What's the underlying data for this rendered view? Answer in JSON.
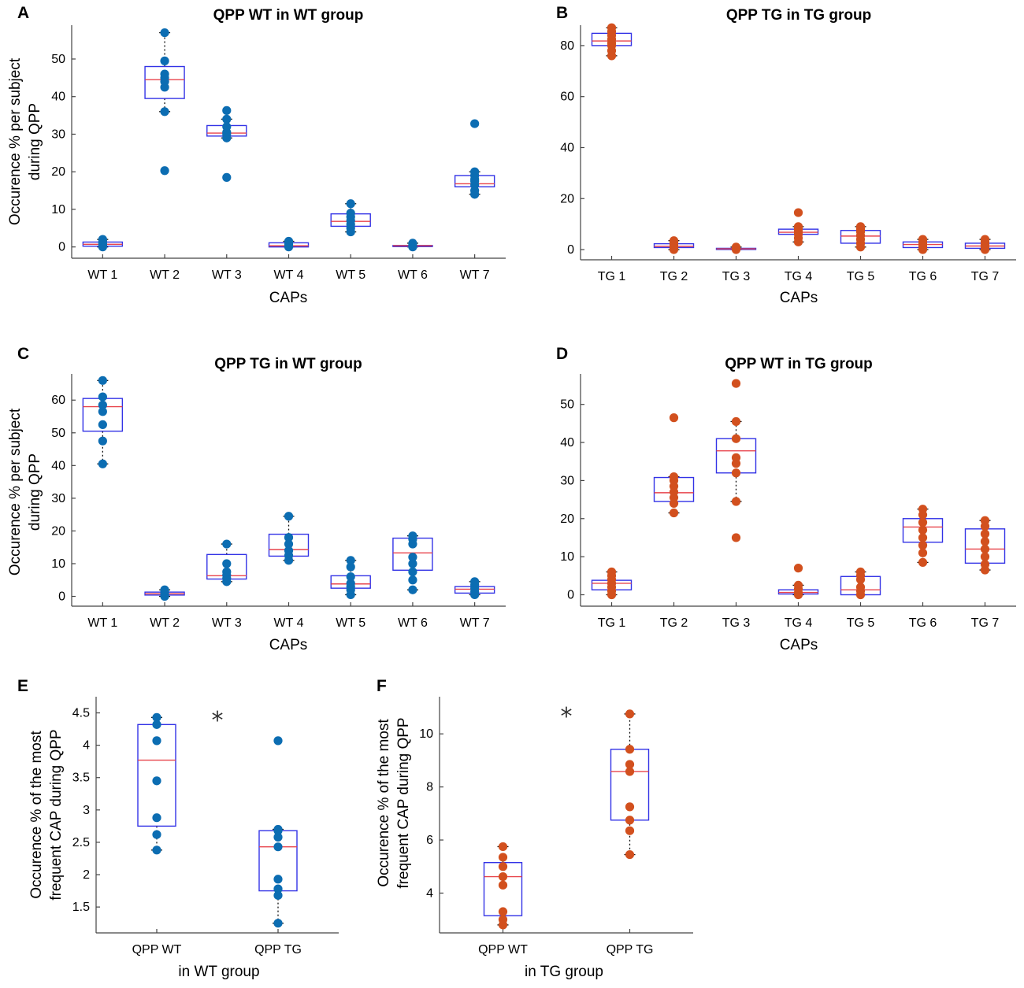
{
  "colors": {
    "wt": "#0C6DB2",
    "tg": "#D2501E",
    "box": "#3333E6",
    "median": "#E8434B",
    "axis": "#444444",
    "star": "#333333"
  },
  "chart_data": [
    {
      "id": "A",
      "panel_letter": "A",
      "type": "box",
      "title": "QPP WT in WT group",
      "xlabel": "CAPs",
      "ylabel": [
        "Occurence % per subject",
        "during QPP"
      ],
      "ylim": [
        -3,
        59
      ],
      "yticks": [
        0,
        10,
        20,
        30,
        40,
        50
      ],
      "categories": [
        "WT 1",
        "WT 2",
        "WT 3",
        "WT 4",
        "WT 5",
        "WT 6",
        "WT 7"
      ],
      "color": "wt",
      "boxes": [
        {
          "q1": 0.2,
          "median": 0.7,
          "q3": 1.3,
          "wlo": 0,
          "whi": 2,
          "points": [
            0,
            0.4,
            0.8,
            1.2,
            1.6,
            2
          ]
        },
        {
          "q1": 39.5,
          "median": 44.5,
          "q3": 48,
          "wlo": 36,
          "whi": 57,
          "points": [
            20.3,
            36,
            42.5,
            44,
            45,
            46,
            49.5,
            57
          ]
        },
        {
          "q1": 29.5,
          "median": 30.3,
          "q3": 32.3,
          "wlo": 29,
          "whi": 34,
          "points": [
            18.5,
            29,
            30,
            30.5,
            32,
            34,
            36.3
          ]
        },
        {
          "q1": 0,
          "median": 0.3,
          "q3": 1.1,
          "wlo": 0,
          "whi": 1.5,
          "points": [
            0,
            0.3,
            0.7,
            1.1,
            1.5
          ]
        },
        {
          "q1": 5.5,
          "median": 6.8,
          "q3": 8.8,
          "wlo": 4,
          "whi": 11.5,
          "points": [
            4,
            5,
            6,
            7,
            8,
            9,
            11.5
          ]
        },
        {
          "q1": 0.2,
          "median": 0.3,
          "q3": 0.4,
          "wlo": 0,
          "whi": 1,
          "points": [
            0,
            0.3,
            0.6,
            1
          ]
        },
        {
          "q1": 16,
          "median": 16.8,
          "q3": 19,
          "wlo": 14,
          "whi": 20,
          "points": [
            14,
            15,
            16.5,
            17.5,
            18,
            19,
            20,
            32.8
          ]
        }
      ]
    },
    {
      "id": "B",
      "panel_letter": "B",
      "type": "box",
      "title": "QPP TG in TG group",
      "xlabel": "CAPs",
      "ylabel": [],
      "ylim": [
        -4,
        88
      ],
      "yticks": [
        0,
        20,
        40,
        60,
        80
      ],
      "categories": [
        "TG 1",
        "TG 2",
        "TG 3",
        "TG 4",
        "TG 5",
        "TG 6",
        "TG 7"
      ],
      "color": "tg",
      "boxes": [
        {
          "q1": 80,
          "median": 81.8,
          "q3": 84.8,
          "wlo": 76,
          "whi": 87,
          "points": [
            76,
            78,
            80,
            81,
            82.5,
            84,
            85.5,
            87
          ]
        },
        {
          "q1": 0.8,
          "median": 1.3,
          "q3": 2.3,
          "wlo": 0,
          "whi": 3.5,
          "points": [
            0,
            0.8,
            1.5,
            2.3,
            3,
            3.5
          ]
        },
        {
          "q1": 0.1,
          "median": 0.3,
          "q3": 0.5,
          "wlo": 0,
          "whi": 1,
          "points": [
            0,
            0.4,
            0.8,
            1
          ]
        },
        {
          "q1": 6,
          "median": 6.8,
          "q3": 8,
          "wlo": 3,
          "whi": 9,
          "points": [
            3,
            4.5,
            6,
            7,
            8,
            9,
            14.5
          ]
        },
        {
          "q1": 2.5,
          "median": 5.3,
          "q3": 7.5,
          "wlo": 1,
          "whi": 9,
          "points": [
            1,
            2.5,
            4,
            5.5,
            7,
            8,
            9
          ]
        },
        {
          "q1": 0.8,
          "median": 2,
          "q3": 3,
          "wlo": 0,
          "whi": 4,
          "points": [
            0,
            1,
            2,
            3,
            4
          ]
        },
        {
          "q1": 0.5,
          "median": 1.4,
          "q3": 2.5,
          "wlo": 0,
          "whi": 4,
          "points": [
            0,
            1,
            2,
            3,
            4
          ]
        }
      ]
    },
    {
      "id": "C",
      "panel_letter": "C",
      "type": "box",
      "title": "QPP TG in WT group",
      "xlabel": "CAPs",
      "ylabel": [
        "Occurence % per subject",
        "during QPP"
      ],
      "ylim": [
        -3,
        68
      ],
      "yticks": [
        0,
        10,
        20,
        30,
        40,
        50,
        60
      ],
      "categories": [
        "WT 1",
        "WT 2",
        "WT 3",
        "WT 4",
        "WT 5",
        "WT 6",
        "WT 7"
      ],
      "color": "wt",
      "boxes": [
        {
          "q1": 50.5,
          "median": 58,
          "q3": 60.5,
          "wlo": 40.5,
          "whi": 66,
          "points": [
            40.5,
            47.5,
            52.5,
            56.5,
            58.5,
            61,
            66
          ]
        },
        {
          "q1": 0.4,
          "median": 0.8,
          "q3": 1.3,
          "wlo": 0,
          "whi": 2,
          "points": [
            0,
            0.4,
            0.8,
            1.2,
            1.6,
            2
          ]
        },
        {
          "q1": 5.3,
          "median": 6.3,
          "q3": 12.8,
          "wlo": 4.5,
          "whi": 16,
          "points": [
            4.5,
            5.5,
            6.5,
            7.5,
            10,
            16
          ]
        },
        {
          "q1": 12.3,
          "median": 14.3,
          "q3": 19,
          "wlo": 11,
          "whi": 24.5,
          "points": [
            11,
            12.5,
            14,
            16,
            18,
            24.5
          ]
        },
        {
          "q1": 2.5,
          "median": 3.8,
          "q3": 6.3,
          "wlo": 0.5,
          "whi": 11,
          "points": [
            0.5,
            2,
            3,
            4,
            6,
            9,
            11
          ]
        },
        {
          "q1": 8,
          "median": 13.3,
          "q3": 17.8,
          "wlo": 2,
          "whi": 18.5,
          "points": [
            2,
            5,
            7.5,
            10,
            12,
            16,
            17.5,
            18.5
          ]
        },
        {
          "q1": 1,
          "median": 2.2,
          "q3": 3,
          "wlo": 0.5,
          "whi": 4.5,
          "points": [
            0.5,
            1.5,
            2.5,
            3.5,
            4.5
          ]
        }
      ]
    },
    {
      "id": "D",
      "panel_letter": "D",
      "type": "box",
      "title": "QPP WT in TG group",
      "xlabel": "CAPs",
      "ylabel": [],
      "ylim": [
        -3,
        58
      ],
      "yticks": [
        0,
        10,
        20,
        30,
        40,
        50
      ],
      "categories": [
        "TG 1",
        "TG 2",
        "TG 3",
        "TG 4",
        "TG 5",
        "TG 6",
        "TG 7"
      ],
      "color": "tg",
      "boxes": [
        {
          "q1": 1.3,
          "median": 3,
          "q3": 3.8,
          "wlo": 0,
          "whi": 6,
          "points": [
            0,
            1,
            2,
            3,
            4,
            5,
            6
          ]
        },
        {
          "q1": 24.5,
          "median": 26.8,
          "q3": 30.8,
          "wlo": 21.5,
          "whi": 31,
          "points": [
            21.5,
            24,
            25.5,
            27,
            28.5,
            30,
            31,
            46.5
          ]
        },
        {
          "q1": 32,
          "median": 37.8,
          "q3": 41,
          "wlo": 24.5,
          "whi": 45.5,
          "points": [
            15,
            24.5,
            32,
            34.5,
            36,
            41,
            45.5,
            55.5
          ]
        },
        {
          "q1": 0.2,
          "median": 0.6,
          "q3": 1.3,
          "wlo": 0,
          "whi": 2.5,
          "points": [
            0,
            0.5,
            1.5,
            2.5,
            7
          ]
        },
        {
          "q1": 0,
          "median": 1.3,
          "q3": 4.8,
          "wlo": 0,
          "whi": 6,
          "points": [
            0,
            1,
            2,
            4,
            5,
            6
          ]
        },
        {
          "q1": 13.8,
          "median": 17.8,
          "q3": 20,
          "wlo": 8.5,
          "whi": 22.5,
          "points": [
            8.5,
            11,
            13,
            15,
            17,
            19,
            21,
            22.5
          ]
        },
        {
          "q1": 8.3,
          "median": 12,
          "q3": 17.3,
          "wlo": 6.5,
          "whi": 19.5,
          "points": [
            6.5,
            8,
            10,
            12,
            14,
            16,
            18,
            19.5
          ]
        }
      ]
    },
    {
      "id": "E",
      "panel_letter": "E",
      "type": "box",
      "title": "",
      "xlabel": "in WT group",
      "ylabel": [
        "Occurence % of the most",
        "frequent CAP during QPP"
      ],
      "ylim": [
        1.1,
        4.75
      ],
      "yticks": [
        1.5,
        2,
        2.5,
        3,
        3.5,
        4,
        4.5
      ],
      "ytick_labels": [
        "1.5",
        "2",
        "2.5",
        "3",
        "3.5",
        "4",
        "4.5"
      ],
      "categories": [
        "QPP WT",
        "QPP TG"
      ],
      "color": "wt",
      "significance": {
        "symbol": "*",
        "y": 4.42
      },
      "boxes": [
        {
          "q1": 2.75,
          "median": 3.77,
          "q3": 4.32,
          "wlo": 2.38,
          "whi": 4.43,
          "points": [
            2.38,
            2.62,
            2.88,
            3.45,
            4.07,
            4.32,
            4.43
          ]
        },
        {
          "q1": 1.75,
          "median": 2.43,
          "q3": 2.68,
          "wlo": 1.25,
          "whi": 2.7,
          "points": [
            1.25,
            1.68,
            1.78,
            1.93,
            2.43,
            2.58,
            2.68,
            2.7,
            4.07
          ]
        }
      ]
    },
    {
      "id": "F",
      "panel_letter": "F",
      "type": "box",
      "title": "",
      "xlabel": "in TG group",
      "ylabel": [
        "Occurence % of the most",
        "frequent CAP during QPP"
      ],
      "ylim": [
        2.5,
        11.4
      ],
      "yticks": [
        4,
        6,
        8,
        10
      ],
      "categories": [
        "QPP WT",
        "QPP TG"
      ],
      "color": "tg",
      "significance": {
        "symbol": "*",
        "y": 10.75
      },
      "boxes": [
        {
          "q1": 3.15,
          "median": 4.62,
          "q3": 5.15,
          "wlo": 2.8,
          "whi": 5.75,
          "points": [
            2.8,
            3,
            3.3,
            4.3,
            4.62,
            5.0,
            5.35,
            5.75
          ]
        },
        {
          "q1": 6.75,
          "median": 8.58,
          "q3": 9.42,
          "wlo": 5.45,
          "whi": 10.75,
          "points": [
            5.45,
            6.35,
            6.75,
            7.25,
            8.58,
            8.85,
            9.42,
            10.75
          ]
        }
      ]
    }
  ]
}
